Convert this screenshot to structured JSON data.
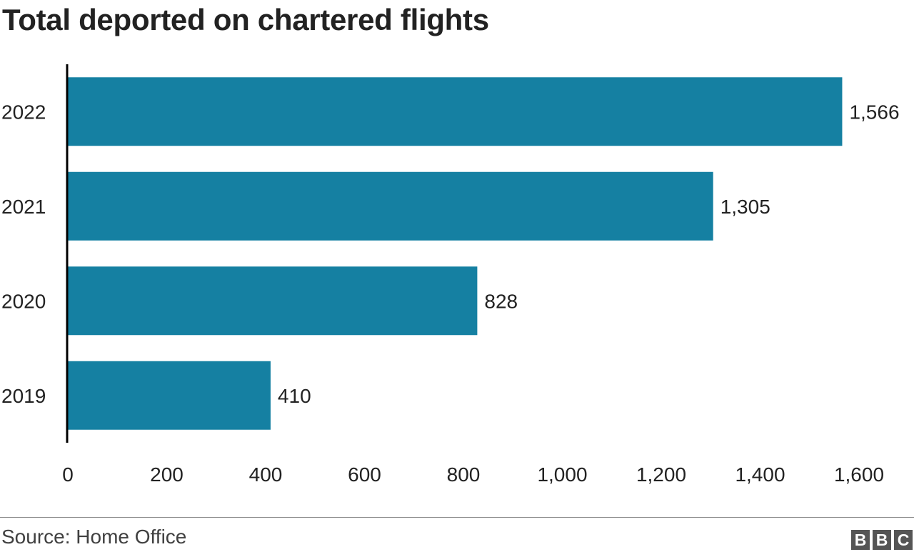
{
  "header": {
    "title": "Total deported on chartered flights"
  },
  "footer": {
    "source": "Source: Home Office",
    "logo_letters": [
      "B",
      "B",
      "C"
    ]
  },
  "colors": {
    "bar": "#1580a2",
    "axis": "#000000",
    "text": "#222222"
  },
  "chart_data": {
    "type": "bar",
    "orientation": "horizontal",
    "title": "Total deported on chartered flights",
    "categories": [
      "2022",
      "2021",
      "2020",
      "2019"
    ],
    "values": [
      1566,
      1305,
      828,
      410
    ],
    "value_labels": [
      "1,566",
      "1,305",
      "828",
      "410"
    ],
    "xlim": [
      0,
      1600
    ],
    "xticks": [
      0,
      200,
      400,
      600,
      800,
      1000,
      1200,
      1400,
      1600
    ],
    "xtick_labels": [
      "0",
      "200",
      "400",
      "600",
      "800",
      "1,000",
      "1,200",
      "1,400",
      "1,600"
    ],
    "grid": false,
    "legend": "none"
  }
}
